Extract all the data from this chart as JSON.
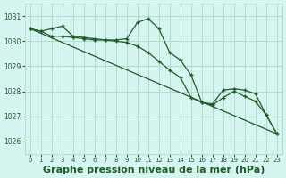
{
  "background_color": "#d6f5f0",
  "grid_color": "#b0ddd0",
  "line_color": "#1e5c28",
  "xlabel": "Graphe pression niveau de la mer (hPa)",
  "xlabel_fontsize": 8,
  "ylim": [
    1025.5,
    1031.5
  ],
  "xlim": [
    -0.5,
    23.5
  ],
  "yticks": [
    1026,
    1027,
    1028,
    1029,
    1030,
    1031
  ],
  "xticks": [
    0,
    1,
    2,
    3,
    4,
    5,
    6,
    7,
    8,
    9,
    10,
    11,
    12,
    13,
    14,
    15,
    16,
    17,
    18,
    19,
    20,
    21,
    22,
    23
  ],
  "series_smooth": {
    "x": [
      0,
      23
    ],
    "y": [
      1030.5,
      1026.3
    ]
  },
  "series_main": {
    "x": [
      0,
      1,
      2,
      3,
      4,
      5,
      6,
      7,
      8,
      9,
      10,
      11,
      12,
      13,
      14,
      15,
      16,
      17,
      18,
      19,
      20,
      21,
      22,
      23
    ],
    "y": [
      1030.5,
      1030.4,
      1030.5,
      1030.6,
      1030.2,
      1030.15,
      1030.1,
      1030.05,
      1030.05,
      1030.1,
      1030.75,
      1030.9,
      1030.5,
      1029.55,
      1029.25,
      1028.65,
      1027.55,
      1027.5,
      1028.05,
      1028.1,
      1028.05,
      1027.9,
      1027.05,
      1026.3
    ]
  },
  "series_mid": {
    "x": [
      0,
      1,
      2,
      3,
      4,
      5,
      6,
      7,
      8,
      9,
      10,
      11,
      12,
      13,
      14,
      15,
      16,
      17,
      18,
      19,
      20,
      21,
      22,
      23
    ],
    "y": [
      1030.5,
      1030.4,
      1030.2,
      1030.2,
      1030.15,
      1030.1,
      1030.05,
      1030.05,
      1030.0,
      1029.95,
      1029.8,
      1029.55,
      1029.2,
      1028.85,
      1028.55,
      1027.75,
      1027.55,
      1027.45,
      1027.75,
      1028.0,
      1027.8,
      1027.6,
      1027.05,
      1026.3
    ]
  }
}
